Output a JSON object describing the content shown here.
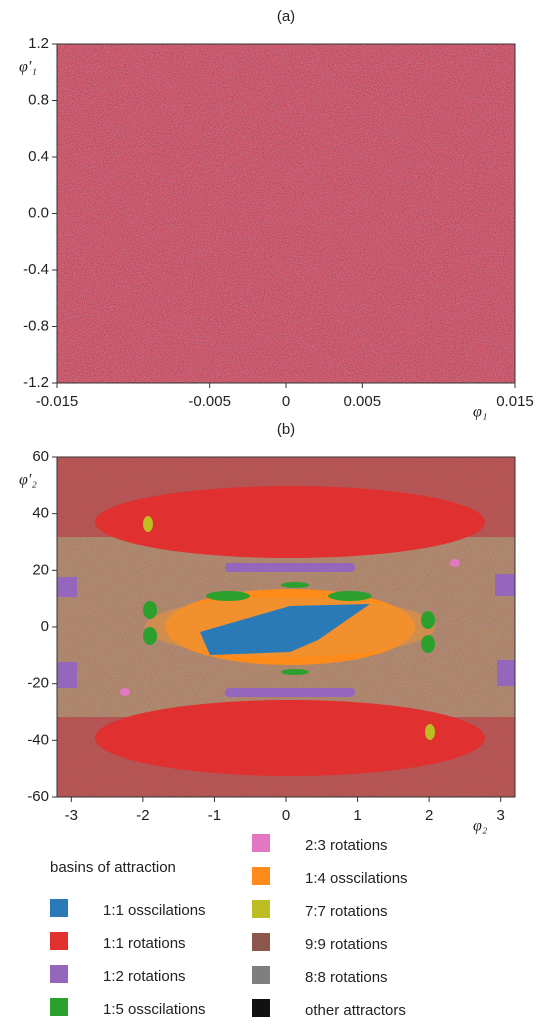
{
  "chart_data": [
    {
      "type": "basin",
      "title": "(a)",
      "xlabel": "φ₁",
      "ylabel": "φ′₁",
      "xlim": [
        -0.015,
        0.015
      ],
      "ylim": [
        -1.2,
        1.2
      ],
      "xticks": [
        -0.015,
        -0.005,
        0,
        0.005,
        0.015
      ],
      "yticks": [
        -1.2,
        -0.8,
        -0.4,
        {
          "value": 0,
          "label": "0.0"
        },
        0.4,
        0.8,
        1.2
      ]
    },
    {
      "type": "basin",
      "title": "(b)",
      "xlabel": "φ₂",
      "ylabel": "φ′₂",
      "xlim": [
        -3.2,
        3.2
      ],
      "ylim": [
        -60,
        60
      ],
      "xticks": [
        -3,
        -2,
        -1,
        0,
        1,
        2,
        3
      ],
      "yticks": [
        -60,
        -40,
        -20,
        0,
        20,
        40,
        60
      ]
    }
  ],
  "legend": {
    "title": "basins of attraction",
    "entries": [
      {
        "name": "1:1 osscilations",
        "color": "#2a7ab8"
      },
      {
        "name": "1:1 rotations",
        "color": "#e03030"
      },
      {
        "name": "1:2 rotations",
        "color": "#9467bd"
      },
      {
        "name": "1:5 osscilations",
        "color": "#2ca02c"
      },
      {
        "name": "2:3 rotations",
        "color": "#e377c2"
      },
      {
        "name": "1:4 osscilations",
        "color": "#ff8c1a"
      },
      {
        "name": "7:7 rotations",
        "color": "#bcbd22"
      },
      {
        "name": "9:9 rotations",
        "color": "#8c564b"
      },
      {
        "name": "8:8 rotations",
        "color": "#7f7f7f"
      },
      {
        "name": "other attractors",
        "color": "#111111"
      }
    ]
  }
}
